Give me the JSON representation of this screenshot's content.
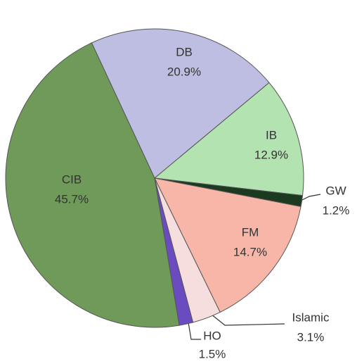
{
  "chart_data": {
    "type": "pie",
    "categories": [
      "DB",
      "IB",
      "GW",
      "FM",
      "Islamic",
      "HO",
      "CIB"
    ],
    "values": [
      20.9,
      12.9,
      1.2,
      14.7,
      3.1,
      1.5,
      45.7
    ],
    "value_labels": [
      "20.9%",
      "12.9%",
      "1.2%",
      "14.7%",
      "3.1%",
      "1.5%",
      "45.7%"
    ],
    "colors": [
      "#bebee2",
      "#b2e3b0",
      "#1c3a20",
      "#f8b6a8",
      "#f7dede",
      "#6a4cc0",
      "#6f9a5a"
    ]
  }
}
